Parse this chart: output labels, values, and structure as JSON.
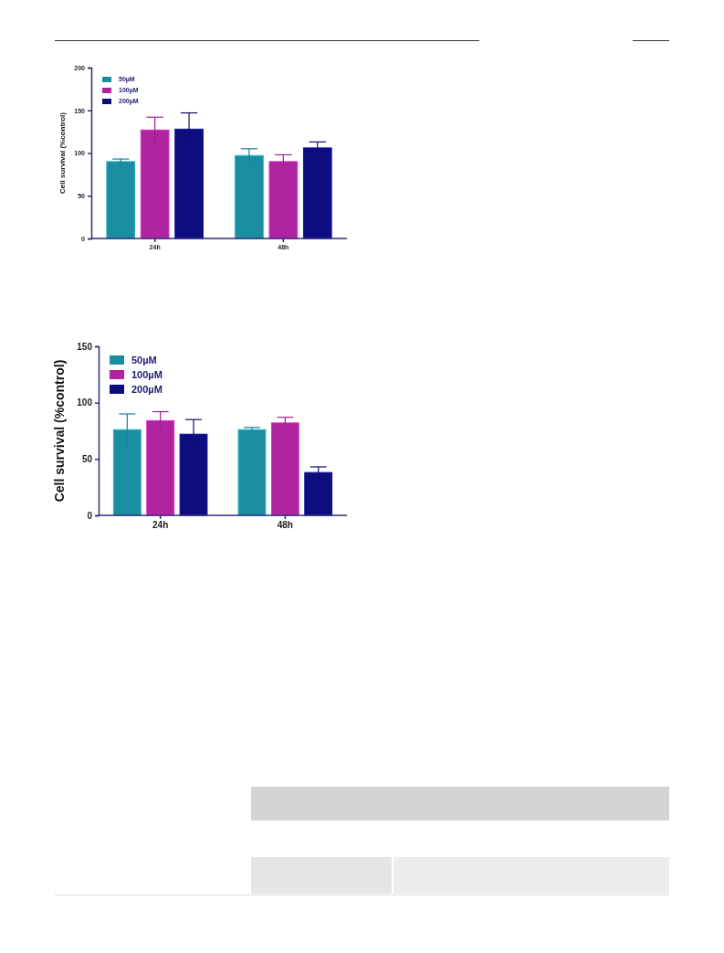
{
  "chart_data": [
    {
      "type": "bar",
      "categories": [
        "24h",
        "48h"
      ],
      "ylabel": "Cell survival (%control)",
      "ylim": [
        0,
        200
      ],
      "yticks": [
        0,
        50,
        100,
        150,
        200
      ],
      "legend": "top left",
      "grid": false,
      "series": [
        {
          "name": "50µM",
          "color": "#1a8ea0",
          "values": [
            90,
            97
          ],
          "errors": [
            3,
            8
          ]
        },
        {
          "name": "100µM",
          "color": "#b0249f",
          "values": [
            127,
            90
          ],
          "errors": [
            15,
            8
          ]
        },
        {
          "name": "200µM",
          "color": "#0d0d80",
          "values": [
            128,
            106
          ],
          "errors": [
            19,
            7
          ]
        }
      ]
    },
    {
      "type": "bar",
      "categories": [
        "24h",
        "48h"
      ],
      "ylabel": "Cell survival (%control)",
      "ylim": [
        0,
        150
      ],
      "yticks": [
        0,
        50,
        100,
        150
      ],
      "legend": "top left",
      "grid": false,
      "series": [
        {
          "name": "50µM",
          "color": "#1a8ea0",
          "values": [
            76,
            76
          ],
          "errors": [
            14,
            2
          ]
        },
        {
          "name": "100µM",
          "color": "#b0249f",
          "values": [
            84,
            82
          ],
          "errors": [
            8,
            5
          ]
        },
        {
          "name": "200µM",
          "color": "#0d0d80",
          "values": [
            72,
            38
          ],
          "errors": [
            13,
            5
          ]
        }
      ]
    }
  ]
}
